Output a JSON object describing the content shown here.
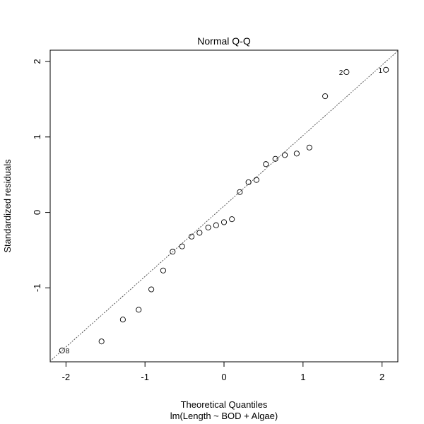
{
  "chart_data": {
    "type": "scatter",
    "title": "Normal Q-Q",
    "xlabel": "Theoretical Quantiles",
    "subtitle": "lm(Length ~ BOD + Algae)",
    "ylabel": "Standardized residuals",
    "xlim": [
      -2.2,
      2.2
    ],
    "ylim": [
      -1.98,
      2.15
    ],
    "x_ticks": [
      -2,
      -1,
      0,
      1,
      2
    ],
    "x_tick_labels": [
      "-2",
      "-1",
      "0",
      "1",
      "2"
    ],
    "y_ticks": [
      -1,
      0,
      1,
      2
    ],
    "y_tick_labels": [
      "-1",
      "0",
      "1",
      "2"
    ],
    "grid": false,
    "points": [
      {
        "x": -2.05,
        "y": -1.83,
        "label": "8"
      },
      {
        "x": -1.55,
        "y": -1.71
      },
      {
        "x": -1.28,
        "y": -1.42
      },
      {
        "x": -1.08,
        "y": -1.29
      },
      {
        "x": -0.92,
        "y": -1.02
      },
      {
        "x": -0.77,
        "y": -0.77
      },
      {
        "x": -0.65,
        "y": -0.52
      },
      {
        "x": -0.53,
        "y": -0.45
      },
      {
        "x": -0.41,
        "y": -0.32
      },
      {
        "x": -0.31,
        "y": -0.27
      },
      {
        "x": -0.2,
        "y": -0.2
      },
      {
        "x": -0.1,
        "y": -0.17
      },
      {
        "x": 0.0,
        "y": -0.13
      },
      {
        "x": 0.1,
        "y": -0.09
      },
      {
        "x": 0.2,
        "y": 0.27
      },
      {
        "x": 0.31,
        "y": 0.4
      },
      {
        "x": 0.41,
        "y": 0.43
      },
      {
        "x": 0.53,
        "y": 0.64
      },
      {
        "x": 0.65,
        "y": 0.71
      },
      {
        "x": 0.77,
        "y": 0.76
      },
      {
        "x": 0.92,
        "y": 0.78
      },
      {
        "x": 1.08,
        "y": 0.86
      },
      {
        "x": 1.28,
        "y": 1.54
      },
      {
        "x": 1.55,
        "y": 1.86,
        "label": "2"
      },
      {
        "x": 2.05,
        "y": 1.89,
        "label": "1"
      }
    ],
    "reference_line": {
      "style": "dotted",
      "color": "#555555",
      "x": [
        -2.2,
        2.2
      ],
      "y": [
        -1.97,
        2.14
      ]
    }
  }
}
